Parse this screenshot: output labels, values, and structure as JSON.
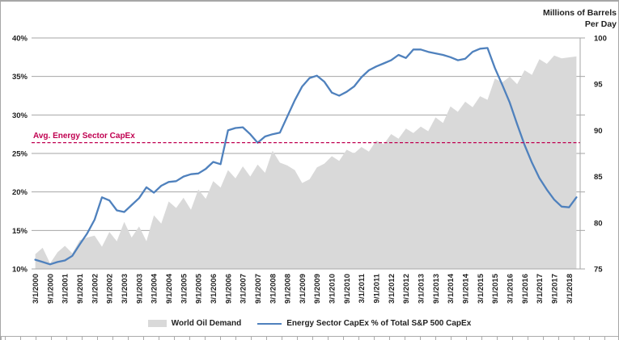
{
  "chart_data": {
    "type": "area+line combo",
    "title": "",
    "x_frequency": "quarterly data points, labels every 6 months",
    "x_tick_labels": [
      "3/1/2000",
      "9/1/2000",
      "3/1/2001",
      "9/1/2001",
      "3/1/2002",
      "9/1/2002",
      "3/1/2003",
      "9/1/2003",
      "3/1/2004",
      "9/1/2004",
      "3/1/2005",
      "9/1/2005",
      "3/1/2006",
      "9/1/2006",
      "3/1/2007",
      "9/1/2007",
      "3/1/2008",
      "9/1/2008",
      "3/1/2009",
      "9/1/2009",
      "3/1/2010",
      "9/1/2010",
      "3/1/2011",
      "9/1/2011",
      "3/1/2012",
      "9/1/2012",
      "3/1/2013",
      "9/1/2013",
      "3/1/2014",
      "9/1/2014",
      "3/1/2015",
      "9/1/2015",
      "3/1/2016",
      "9/1/2016",
      "3/1/2017",
      "9/1/2017",
      "3/1/2018"
    ],
    "left_axis": {
      "min": 10,
      "max": 40,
      "format": "percent",
      "tick_labels": [
        "40%",
        "35%",
        "30%",
        "25%",
        "20%",
        "15%",
        "10%"
      ],
      "grid": true
    },
    "right_axis": {
      "min": 75,
      "max": 100,
      "tick_labels": [
        "100",
        "95",
        "90",
        "85",
        "80",
        "75"
      ],
      "title_lines": [
        "Millions of Barrels",
        "Per Day"
      ]
    },
    "series": [
      {
        "name": "World Oil Demand",
        "type": "area",
        "axis": "right",
        "color": "#d9d9d9",
        "values": [
          76.6,
          77.3,
          75.6,
          76.8,
          77.5,
          76.7,
          78.1,
          78.4,
          78.6,
          77.4,
          79.0,
          78.0,
          80.1,
          78.4,
          79.6,
          78.0,
          80.8,
          79.9,
          82.3,
          81.6,
          82.7,
          81.4,
          83.6,
          82.6,
          84.5,
          83.8,
          85.7,
          84.8,
          86.1,
          85.0,
          86.3,
          85.4,
          87.8,
          86.5,
          86.2,
          85.7,
          84.3,
          84.7,
          86.0,
          86.4,
          87.2,
          86.7,
          87.9,
          87.5,
          88.2,
          87.7,
          88.9,
          88.5,
          89.6,
          89.1,
          90.2,
          89.7,
          90.4,
          89.9,
          91.4,
          90.8,
          92.6,
          92.0,
          93.1,
          92.5,
          93.7,
          93.3,
          95.6,
          95.2,
          95.8,
          95.0,
          96.5,
          96.0,
          97.7,
          97.2,
          98.1,
          97.8,
          97.9,
          98.0
        ]
      },
      {
        "name": "Energy Sector CapEx % of Total S&P 500 CapEx",
        "type": "line",
        "axis": "left",
        "color": "#4f81bd",
        "values": [
          11.2,
          10.9,
          10.6,
          10.9,
          11.1,
          11.7,
          13.2,
          14.6,
          16.4,
          19.3,
          18.9,
          17.6,
          17.4,
          18.3,
          19.2,
          20.6,
          19.9,
          20.8,
          21.3,
          21.4,
          22.0,
          22.3,
          22.4,
          23.0,
          23.9,
          23.6,
          28.0,
          28.3,
          28.4,
          27.5,
          26.4,
          27.2,
          27.5,
          27.7,
          29.8,
          31.9,
          33.7,
          34.8,
          35.1,
          34.3,
          32.9,
          32.5,
          33.0,
          33.7,
          34.9,
          35.8,
          36.3,
          36.7,
          37.1,
          37.8,
          37.4,
          38.5,
          38.5,
          38.2,
          38.0,
          37.8,
          37.5,
          37.1,
          37.3,
          38.2,
          38.6,
          38.7,
          36.1,
          33.9,
          31.6,
          28.8,
          26.1,
          23.8,
          21.8,
          20.3,
          19.0,
          18.1,
          18.0,
          19.3
        ]
      }
    ],
    "reference_line": {
      "label": "Avg. Energy Sector CapEx",
      "value": 26.4,
      "axis": "left",
      "style": "dashed",
      "color": "#c00050"
    },
    "legend": {
      "position": "bottom",
      "entries": [
        "World Oil Demand",
        "Energy Sector CapEx % of Total S&P 500 CapEx"
      ]
    },
    "colors": {
      "gridline": "#a6a6a6",
      "plot_border": "#a6a6a6",
      "text": "#1f1f1f"
    }
  }
}
